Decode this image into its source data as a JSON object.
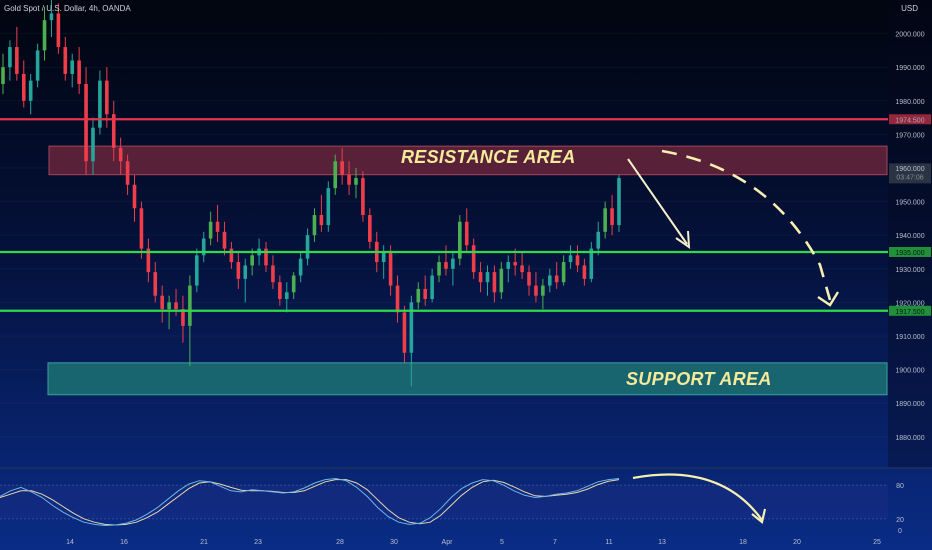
{
  "header": {
    "symbol": "Gold Spot / U.S. Dollar, 4h, OANDA",
    "currency": "USD"
  },
  "annotations": {
    "resistance_label": "RESISTANCE AREA",
    "support_label": "SUPPORT AREA"
  },
  "colors": {
    "up": "#26a69a",
    "up_bright": "#4caf50",
    "down": "#ef3e4a",
    "resistance_line": "#e0374f",
    "level_line": "#2edb4a",
    "resistance_zone": "#7a2a3e",
    "support_zone": "#1f7a74",
    "stoch_k": "#6fb4e8",
    "stoch_d": "#e9d7a8",
    "arrow": "#f5f0c8"
  },
  "chart_data": {
    "type": "candlestick",
    "title": "Gold Spot / U.S. Dollar, 4h, OANDA",
    "price_axis": {
      "ylim": [
        1871,
        2010
      ],
      "ticks": [
        2000,
        1990,
        1980,
        1970,
        1960,
        1950,
        1940,
        1930,
        1920,
        1910,
        1900,
        1890,
        1880
      ],
      "tick_labels": [
        "2000.000",
        "1990.000",
        "1980.000",
        "1970.000",
        "1960.000",
        "1950.000",
        "1940.000",
        "1930.000",
        "1920.000",
        "1910.000",
        "1900.000",
        "1890.000",
        "1880.000"
      ],
      "unit": "USD"
    },
    "x_axis": {
      "tick_labels": [
        "14",
        "16",
        "21",
        "23",
        "28",
        "30",
        "Apr",
        "5",
        "7",
        "11",
        "13",
        "18",
        "20",
        "25"
      ]
    },
    "horizontal_levels": [
      {
        "value": 1974.5,
        "label": "1974.500",
        "role": "resistance_line"
      },
      {
        "value": 1935.0,
        "label": "1935.000",
        "role": "level"
      },
      {
        "value": 1917.5,
        "label": "1917.500",
        "role": "level"
      }
    ],
    "zones": [
      {
        "name": "resistance",
        "from": 1958,
        "to": 1966.5
      },
      {
        "name": "support",
        "from": 1892.5,
        "to": 1902
      }
    ],
    "last_price": {
      "value": 1957.5,
      "countdown": "03:47:06"
    },
    "candles": [
      [
        1985,
        1994,
        1982,
        1990
      ],
      [
        1990,
        1998,
        1986,
        1996
      ],
      [
        1996,
        2002,
        1986,
        1988
      ],
      [
        1988,
        1992,
        1978,
        1980
      ],
      [
        1980,
        1988,
        1976,
        1986
      ],
      [
        1986,
        1997,
        1984,
        1995
      ],
      [
        1995,
        2008,
        1992,
        2004
      ],
      [
        2004,
        2010,
        1999,
        2006
      ],
      [
        2006,
        2009,
        1994,
        1996
      ],
      [
        1996,
        1999,
        1986,
        1988
      ],
      [
        1988,
        1994,
        1984,
        1992
      ],
      [
        1992,
        1996,
        1982,
        1985
      ],
      [
        1985,
        1990,
        1958,
        1962
      ],
      [
        1962,
        1975,
        1958,
        1972
      ],
      [
        1972,
        1989,
        1970,
        1986
      ],
      [
        1986,
        1990,
        1972,
        1976
      ],
      [
        1976,
        1980,
        1962,
        1966
      ],
      [
        1966,
        1969,
        1958,
        1962
      ],
      [
        1962,
        1964,
        1952,
        1955
      ],
      [
        1955,
        1958,
        1944,
        1948
      ],
      [
        1948,
        1950,
        1933,
        1936
      ],
      [
        1936,
        1939,
        1926,
        1929
      ],
      [
        1929,
        1932,
        1920,
        1922
      ],
      [
        1922,
        1925,
        1914,
        1918
      ],
      [
        1918,
        1922,
        1912,
        1920
      ],
      [
        1920,
        1924,
        1916,
        1918
      ],
      [
        1918,
        1922,
        1908,
        1913
      ],
      [
        1913,
        1928,
        1901,
        1925
      ],
      [
        1925,
        1936,
        1923,
        1934
      ],
      [
        1934,
        1941,
        1932,
        1939
      ],
      [
        1939,
        1947,
        1937,
        1944
      ],
      [
        1944,
        1949,
        1938,
        1941
      ],
      [
        1941,
        1944,
        1934,
        1936
      ],
      [
        1936,
        1938,
        1930,
        1932
      ],
      [
        1932,
        1935,
        1924,
        1927
      ],
      [
        1927,
        1933,
        1920,
        1931
      ],
      [
        1931,
        1936,
        1928,
        1934
      ],
      [
        1934,
        1939,
        1931,
        1936
      ],
      [
        1936,
        1938,
        1929,
        1931
      ],
      [
        1931,
        1934,
        1924,
        1926
      ],
      [
        1926,
        1928,
        1919,
        1921
      ],
      [
        1921,
        1926,
        1917,
        1923
      ],
      [
        1923,
        1929,
        1921,
        1928
      ],
      [
        1928,
        1935,
        1926,
        1933
      ],
      [
        1933,
        1942,
        1931,
        1940
      ],
      [
        1940,
        1948,
        1938,
        1946
      ],
      [
        1946,
        1952,
        1941,
        1943
      ],
      [
        1943,
        1956,
        1941,
        1954
      ],
      [
        1954,
        1964,
        1952,
        1962
      ],
      [
        1962,
        1966,
        1955,
        1958
      ],
      [
        1958,
        1962,
        1952,
        1955
      ],
      [
        1955,
        1960,
        1951,
        1957
      ],
      [
        1957,
        1959,
        1944,
        1946
      ],
      [
        1946,
        1948,
        1936,
        1938
      ],
      [
        1938,
        1941,
        1929,
        1932
      ],
      [
        1932,
        1937,
        1927,
        1935
      ],
      [
        1935,
        1937,
        1922,
        1925
      ],
      [
        1925,
        1928,
        1914,
        1917
      ],
      [
        1917,
        1919,
        1902,
        1905
      ],
      [
        1905,
        1922,
        1895,
        1920
      ],
      [
        1920,
        1926,
        1918,
        1924
      ],
      [
        1924,
        1928,
        1919,
        1921
      ],
      [
        1921,
        1930,
        1920,
        1928
      ],
      [
        1928,
        1934,
        1926,
        1932
      ],
      [
        1932,
        1937,
        1928,
        1930
      ],
      [
        1930,
        1935,
        1925,
        1933
      ],
      [
        1933,
        1946,
        1931,
        1944
      ],
      [
        1944,
        1948,
        1935,
        1937
      ],
      [
        1937,
        1939,
        1927,
        1929
      ],
      [
        1929,
        1932,
        1923,
        1926
      ],
      [
        1926,
        1931,
        1922,
        1929
      ],
      [
        1929,
        1931,
        1920,
        1923
      ],
      [
        1923,
        1932,
        1921,
        1930
      ],
      [
        1930,
        1934,
        1926,
        1932
      ],
      [
        1932,
        1936,
        1928,
        1931
      ],
      [
        1931,
        1935,
        1927,
        1929
      ],
      [
        1929,
        1931,
        1922,
        1925
      ],
      [
        1925,
        1929,
        1920,
        1922
      ],
      [
        1922,
        1927,
        1918,
        1925
      ],
      [
        1925,
        1930,
        1923,
        1928
      ],
      [
        1928,
        1932,
        1924,
        1926
      ],
      [
        1926,
        1934,
        1925,
        1932
      ],
      [
        1932,
        1937,
        1930,
        1934
      ],
      [
        1934,
        1937,
        1929,
        1931
      ],
      [
        1931,
        1933,
        1925,
        1927
      ],
      [
        1927,
        1938,
        1926,
        1936
      ],
      [
        1936,
        1944,
        1934,
        1941
      ],
      [
        1941,
        1950,
        1939,
        1948
      ],
      [
        1948,
        1952,
        1940,
        1943
      ],
      [
        1943,
        1958,
        1941,
        1957
      ]
    ],
    "stochastic": {
      "ylim": [
        0,
        100
      ],
      "ticks": [
        80,
        20,
        0
      ],
      "tick_labels": [
        "80",
        "20",
        "0"
      ],
      "k": [
        60,
        70,
        76,
        68,
        58,
        44,
        32,
        22,
        14,
        10,
        8,
        9,
        12,
        18,
        28,
        40,
        55,
        70,
        82,
        88,
        86,
        78,
        70,
        68,
        72,
        70,
        68,
        66,
        68,
        75,
        84,
        90,
        92,
        88,
        76,
        60,
        40,
        24,
        14,
        10,
        12,
        22,
        38,
        58,
        74,
        84,
        90,
        88,
        80,
        70,
        62,
        58,
        60,
        64,
        66,
        70,
        78,
        86,
        90,
        92
      ],
      "d": [
        58,
        64,
        70,
        70,
        64,
        54,
        42,
        30,
        20,
        14,
        10,
        9,
        10,
        14,
        22,
        32,
        46,
        60,
        74,
        84,
        86,
        82,
        76,
        71,
        70,
        70,
        69,
        67,
        67,
        70,
        78,
        86,
        90,
        90,
        84,
        72,
        54,
        36,
        22,
        14,
        11,
        14,
        26,
        44,
        62,
        76,
        86,
        89,
        85,
        77,
        68,
        61,
        60,
        62,
        64,
        67,
        73,
        81,
        87,
        90
      ]
    }
  }
}
